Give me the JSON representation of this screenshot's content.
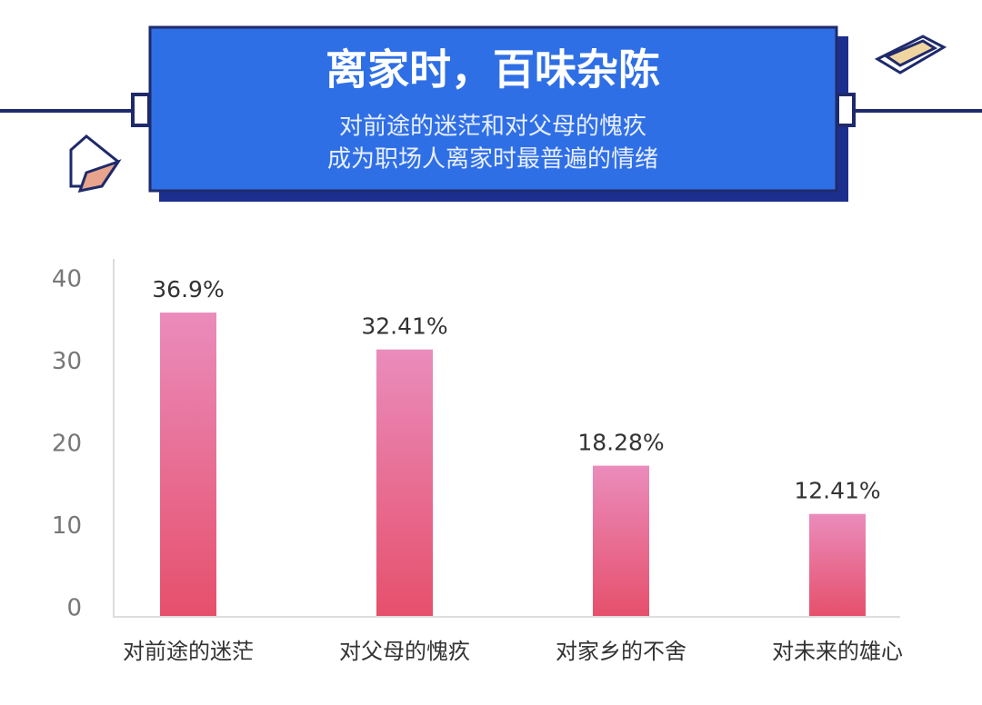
{
  "chart_data": {
    "type": "bar",
    "title": "离家时，百味杂陈",
    "subtitle": [
      "对前途的迷茫和对父母的愧疚",
      "成为职场人离家时最普遍的情绪"
    ],
    "categories": [
      "对前途的迷茫",
      "对父母的愧疚",
      "对家乡的不舍",
      "对未来的雄心"
    ],
    "values": [
      36.9,
      32.41,
      18.28,
      12.41
    ],
    "value_labels": [
      "36.9%",
      "32.41%",
      "18.28%",
      "12.41%"
    ],
    "gradient": [
      "#ea8cbc",
      "#e6506c"
    ],
    "ylim": [
      0,
      40
    ],
    "yticks": [
      0,
      10,
      20,
      30,
      40
    ],
    "grid": false
  }
}
